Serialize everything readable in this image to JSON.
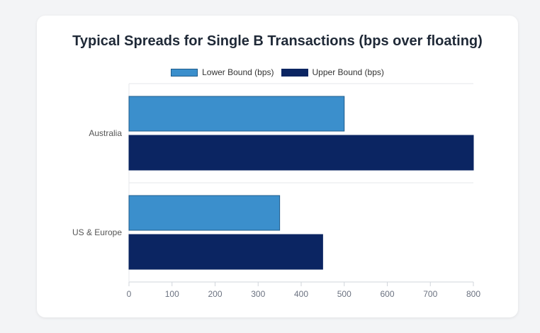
{
  "chart_data": {
    "type": "bar",
    "orientation": "horizontal",
    "title": "Typical Spreads for Single B Transactions (bps over floating)",
    "categories": [
      "Australia",
      "US & Europe"
    ],
    "series": [
      {
        "name": "Lower Bound (bps)",
        "values": [
          500,
          350
        ],
        "color": "#3b8fcc"
      },
      {
        "name": "Upper Bound (bps)",
        "values": [
          800,
          450
        ],
        "color": "#0b2562"
      }
    ],
    "xlim": [
      0,
      800
    ],
    "xticks": [
      "0",
      "100",
      "200",
      "300",
      "400",
      "500",
      "600",
      "700",
      "800"
    ],
    "grid": true,
    "legend_position": "top"
  }
}
